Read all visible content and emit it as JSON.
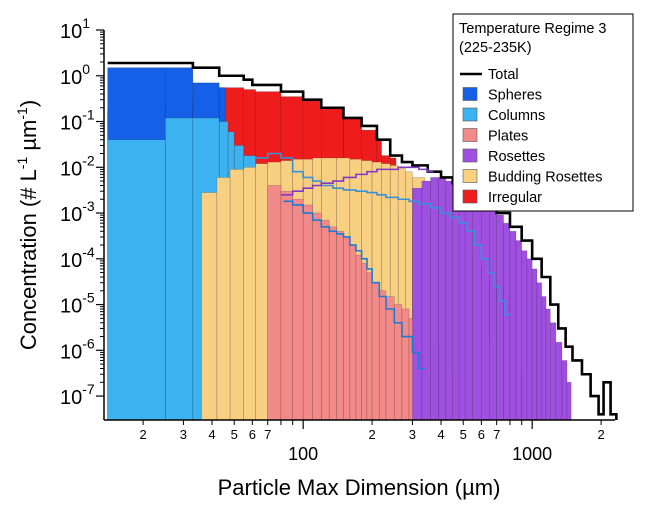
{
  "chart_data": {
    "type": "bar",
    "xlabel": "Particle Max Dimension (µm)",
    "ylabel": "Concentration (# L^-1 µm^-1)",
    "ylabel_parts": {
      "a": "Concentration (# L",
      "b": "-1",
      "c": " µm",
      "d": "-1",
      "e": ")"
    },
    "x_scale": "log",
    "y_scale": "log",
    "xlim": [
      13.5,
      2300
    ],
    "ylim": [
      3e-08,
      10
    ],
    "grid": false,
    "legend": {
      "position": "top-right",
      "title_lines": [
        "Temperature Regime 3",
        "(225-235K)"
      ],
      "entries": [
        {
          "name": "Total",
          "kind": "line",
          "color": "#000000"
        },
        {
          "name": "Spheres",
          "kind": "fill",
          "color": "#1560e6"
        },
        {
          "name": "Columns",
          "kind": "fill",
          "color": "#3cb2f0"
        },
        {
          "name": "Plates",
          "kind": "fill",
          "color": "#f28a8a"
        },
        {
          "name": "Rosettes",
          "kind": "fill",
          "color": "#a050e0"
        },
        {
          "name": "Budding Rosettes",
          "kind": "fill",
          "color": "#f9cf82"
        },
        {
          "name": "Irregular",
          "kind": "fill",
          "color": "#ee1c1c"
        }
      ]
    },
    "x_major_ticks": [
      {
        "value": 100,
        "label": "100"
      },
      {
        "value": 1000,
        "label": "1000"
      }
    ],
    "x_minor_ticks": [
      {
        "value": 20,
        "label": "2"
      },
      {
        "value": 30,
        "label": "3"
      },
      {
        "value": 40,
        "label": "4"
      },
      {
        "value": 50,
        "label": "5"
      },
      {
        "value": 60,
        "label": "6"
      },
      {
        "value": 70,
        "label": "7"
      },
      {
        "value": 200,
        "label": "2"
      },
      {
        "value": 300,
        "label": "3"
      },
      {
        "value": 400,
        "label": "4"
      },
      {
        "value": 500,
        "label": "5"
      },
      {
        "value": 600,
        "label": "6"
      },
      {
        "value": 700,
        "label": "7"
      },
      {
        "value": 2000,
        "label": "2"
      }
    ],
    "y_ticks": [
      {
        "exp": "1",
        "value": 10
      },
      {
        "exp": "0",
        "value": 1
      },
      {
        "exp": "-1",
        "value": 0.1
      },
      {
        "exp": "-2",
        "value": 0.01
      },
      {
        "exp": "-3",
        "value": 0.001
      },
      {
        "exp": "-4",
        "value": 0.0001
      },
      {
        "exp": "-5",
        "value": 1e-05
      },
      {
        "exp": "-6",
        "value": 1e-06
      },
      {
        "exp": "-7",
        "value": 1e-07
      }
    ],
    "series": [
      {
        "name": "Total",
        "kind": "step",
        "color": "#000000",
        "points": [
          [
            14,
            1.9
          ],
          [
            25,
            1.9
          ],
          [
            33,
            1.5
          ],
          [
            43,
            1.0
          ],
          [
            55,
            0.82
          ],
          [
            60,
            0.63
          ],
          [
            80,
            0.45
          ],
          [
            100,
            0.3
          ],
          [
            120,
            0.2
          ],
          [
            150,
            0.12
          ],
          [
            180,
            0.08
          ],
          [
            210,
            0.04
          ],
          [
            240,
            0.018
          ],
          [
            270,
            0.013
          ],
          [
            300,
            0.011
          ],
          [
            350,
            0.008
          ],
          [
            400,
            0.006
          ],
          [
            450,
            0.0045
          ],
          [
            500,
            0.0035
          ],
          [
            600,
            0.0015
          ],
          [
            700,
            0.001
          ],
          [
            800,
            0.0005
          ],
          [
            900,
            0.00025
          ],
          [
            1000,
            0.0001
          ],
          [
            1100,
            4e-05
          ],
          [
            1200,
            1e-05
          ],
          [
            1300,
            3e-06
          ],
          [
            1400,
            1.2e-06
          ],
          [
            1500,
            6e-07
          ],
          [
            1650,
            3e-07
          ],
          [
            1800,
            1e-07
          ],
          [
            1950,
            4e-08
          ],
          [
            2050,
            2e-07
          ],
          [
            2200,
            4e-08
          ]
        ]
      },
      {
        "name": "Irregular",
        "kind": "fill",
        "color": "#ee1c1c",
        "points": [
          [
            14,
            0.18
          ],
          [
            25,
            0.25
          ],
          [
            33,
            0.4
          ],
          [
            43,
            0.55
          ],
          [
            55,
            0.5
          ],
          [
            62,
            0.45
          ],
          [
            80,
            0.35
          ],
          [
            100,
            0.28
          ],
          [
            120,
            0.2
          ],
          [
            150,
            0.12
          ],
          [
            180,
            0.065
          ],
          [
            210,
            0.04
          ],
          [
            220,
            0.018
          ],
          [
            240,
            0.016
          ]
        ]
      },
      {
        "name": "Spheres",
        "kind": "fill",
        "color": "#1560e6",
        "points": [
          [
            14,
            1.5
          ],
          [
            25,
            1.5
          ],
          [
            33,
            0.7
          ],
          [
            43,
            0.55
          ]
        ]
      },
      {
        "name": "Columns",
        "kind": "fill",
        "color": "#3cb2f0",
        "points": [
          [
            14,
            0.04
          ],
          [
            25,
            0.12
          ],
          [
            33,
            0.12
          ],
          [
            43,
            0.1
          ],
          [
            47,
            0.06
          ],
          [
            50,
            0.03
          ],
          [
            55,
            0.018
          ],
          [
            62,
            0.012
          ],
          [
            70,
            0.008
          ],
          [
            80,
            0.005
          ],
          [
            90,
            0.004
          ],
          [
            100,
            0.004
          ],
          [
            110,
            0.003
          ],
          [
            120,
            0.0028
          ],
          [
            140,
            0.0025
          ],
          [
            160,
            0.002
          ],
          [
            180,
            0.0018
          ],
          [
            200,
            0.0015
          ],
          [
            230,
            0.0012
          ],
          [
            260,
            0.0009
          ],
          [
            300,
            0.0006
          ],
          [
            350,
            0.0004
          ],
          [
            400,
            0.00025
          ],
          [
            450,
            0.00015
          ],
          [
            500,
            0.0001
          ],
          [
            550,
            6e-05
          ],
          [
            600,
            4e-05
          ],
          [
            650,
            3e-05
          ],
          [
            700,
            2.5e-05
          ],
          [
            750,
            2e-05
          ],
          [
            800,
            8e-06
          ],
          [
            880,
            3e-07
          ],
          [
            930,
            3e-08
          ]
        ]
      },
      {
        "name": "Budding Rosettes",
        "kind": "fill",
        "color": "#f9cf82",
        "points": [
          [
            36,
            0.0028
          ],
          [
            42,
            0.006
          ],
          [
            48,
            0.009
          ],
          [
            55,
            0.01
          ],
          [
            62,
            0.012
          ],
          [
            70,
            0.013
          ],
          [
            80,
            0.014
          ],
          [
            90,
            0.015
          ],
          [
            100,
            0.015
          ],
          [
            110,
            0.016
          ],
          [
            120,
            0.016
          ],
          [
            140,
            0.016
          ],
          [
            160,
            0.015
          ],
          [
            180,
            0.014
          ],
          [
            200,
            0.013
          ],
          [
            220,
            0.012
          ],
          [
            240,
            0.011
          ],
          [
            260,
            0.0095
          ],
          [
            280,
            0.008
          ],
          [
            300,
            0.006
          ],
          [
            340,
            0.004
          ],
          [
            380,
            0.0025
          ],
          [
            420,
            0.0015
          ],
          [
            460,
            0.0008
          ],
          [
            500,
            0.0003
          ],
          [
            540,
            0.0001
          ],
          [
            580,
            4e-05
          ],
          [
            620,
            1.5e-06
          ],
          [
            660,
            3e-08
          ]
        ]
      },
      {
        "name": "Plates",
        "kind": "fill",
        "color": "#f28a8a",
        "points": [
          [
            70,
            0.004
          ],
          [
            80,
            0.003
          ],
          [
            90,
            0.002
          ],
          [
            100,
            0.0015
          ],
          [
            110,
            0.001
          ],
          [
            120,
            0.0007
          ],
          [
            130,
            0.0005
          ],
          [
            140,
            0.0004
          ],
          [
            150,
            0.0003
          ],
          [
            160,
            0.0002
          ],
          [
            170,
            0.00012
          ],
          [
            180,
            8e-05
          ],
          [
            190,
            5e-05
          ],
          [
            200,
            3e-05
          ],
          [
            215,
            2e-05
          ],
          [
            230,
            1.5e-05
          ],
          [
            250,
            1e-05
          ],
          [
            270,
            8e-06
          ],
          [
            290,
            5e-06
          ],
          [
            310,
            3e-06
          ],
          [
            340,
            2e-06
          ],
          [
            370,
            1.5e-06
          ],
          [
            400,
            6e-07
          ],
          [
            430,
            3e-07
          ],
          [
            460,
            3e-08
          ]
        ]
      },
      {
        "name": "Rosettes",
        "kind": "fill",
        "color": "#a050e0",
        "points": [
          [
            300,
            0.0035
          ],
          [
            330,
            0.005
          ],
          [
            360,
            0.006
          ],
          [
            390,
            0.006
          ],
          [
            420,
            0.005
          ],
          [
            450,
            0.004
          ],
          [
            480,
            0.003
          ],
          [
            510,
            0.0025
          ],
          [
            550,
            0.002
          ],
          [
            600,
            0.0015
          ],
          [
            650,
            0.0012
          ],
          [
            700,
            0.0009
          ],
          [
            750,
            0.0006
          ],
          [
            800,
            0.0004
          ],
          [
            850,
            0.00025
          ],
          [
            900,
            0.00015
          ],
          [
            950,
            0.0001
          ],
          [
            1000,
            6e-05
          ],
          [
            1050,
            3e-05
          ],
          [
            1100,
            1.5e-05
          ],
          [
            1150,
            8e-06
          ],
          [
            1200,
            4e-06
          ],
          [
            1270,
            1.5e-06
          ],
          [
            1350,
            6e-07
          ],
          [
            1420,
            2e-07
          ],
          [
            1480,
            3e-08
          ]
        ]
      },
      {
        "name": "Columns outline",
        "kind": "outline",
        "color": "#3a8fd9",
        "points": [
          [
            62,
            0.016
          ],
          [
            70,
            0.02
          ],
          [
            80,
            0.016
          ],
          [
            90,
            0.008
          ],
          [
            100,
            0.006
          ],
          [
            110,
            0.005
          ],
          [
            120,
            0.004
          ],
          [
            135,
            0.0035
          ],
          [
            150,
            0.0032
          ],
          [
            170,
            0.003
          ],
          [
            190,
            0.0028
          ],
          [
            210,
            0.0025
          ],
          [
            230,
            0.0022
          ],
          [
            260,
            0.002
          ],
          [
            290,
            0.0018
          ],
          [
            320,
            0.0016
          ],
          [
            360,
            0.0013
          ],
          [
            400,
            0.001
          ],
          [
            440,
            0.0008
          ],
          [
            480,
            0.0006
          ],
          [
            520,
            0.0004
          ],
          [
            560,
            0.0002
          ],
          [
            600,
            0.0001
          ],
          [
            640,
            5e-05
          ],
          [
            680,
            2.5e-05
          ],
          [
            720,
            1.2e-05
          ],
          [
            760,
            6e-06
          ]
        ]
      },
      {
        "name": "Rosettes outline",
        "kind": "outline",
        "color": "#7c3cc8",
        "points": [
          [
            80,
            0.0025
          ],
          [
            90,
            0.003
          ],
          [
            100,
            0.0035
          ],
          [
            110,
            0.004
          ],
          [
            120,
            0.0045
          ],
          [
            135,
            0.005
          ],
          [
            150,
            0.006
          ],
          [
            170,
            0.007
          ],
          [
            190,
            0.008
          ],
          [
            210,
            0.009
          ],
          [
            230,
            0.009
          ],
          [
            260,
            0.01
          ],
          [
            290,
            0.01
          ],
          [
            320,
            0.009
          ],
          [
            350,
            0.008
          ]
        ]
      },
      {
        "name": "Plates outline",
        "kind": "outline",
        "color": "#1a7bd6",
        "points": [
          [
            82,
            0.0018
          ],
          [
            90,
            0.0015
          ],
          [
            100,
            0.001
          ],
          [
            110,
            0.0007
          ],
          [
            120,
            0.0005
          ],
          [
            130,
            0.0004
          ],
          [
            140,
            0.00035
          ],
          [
            150,
            0.0003
          ],
          [
            160,
            0.0002
          ],
          [
            170,
            0.00015
          ],
          [
            180,
            0.0001
          ],
          [
            190,
            6e-05
          ],
          [
            200,
            3e-05
          ],
          [
            215,
            1.5e-05
          ],
          [
            230,
            8e-06
          ],
          [
            250,
            4e-06
          ],
          [
            270,
            2e-06
          ],
          [
            300,
            9e-07
          ],
          [
            320,
            4e-07
          ]
        ]
      }
    ]
  }
}
